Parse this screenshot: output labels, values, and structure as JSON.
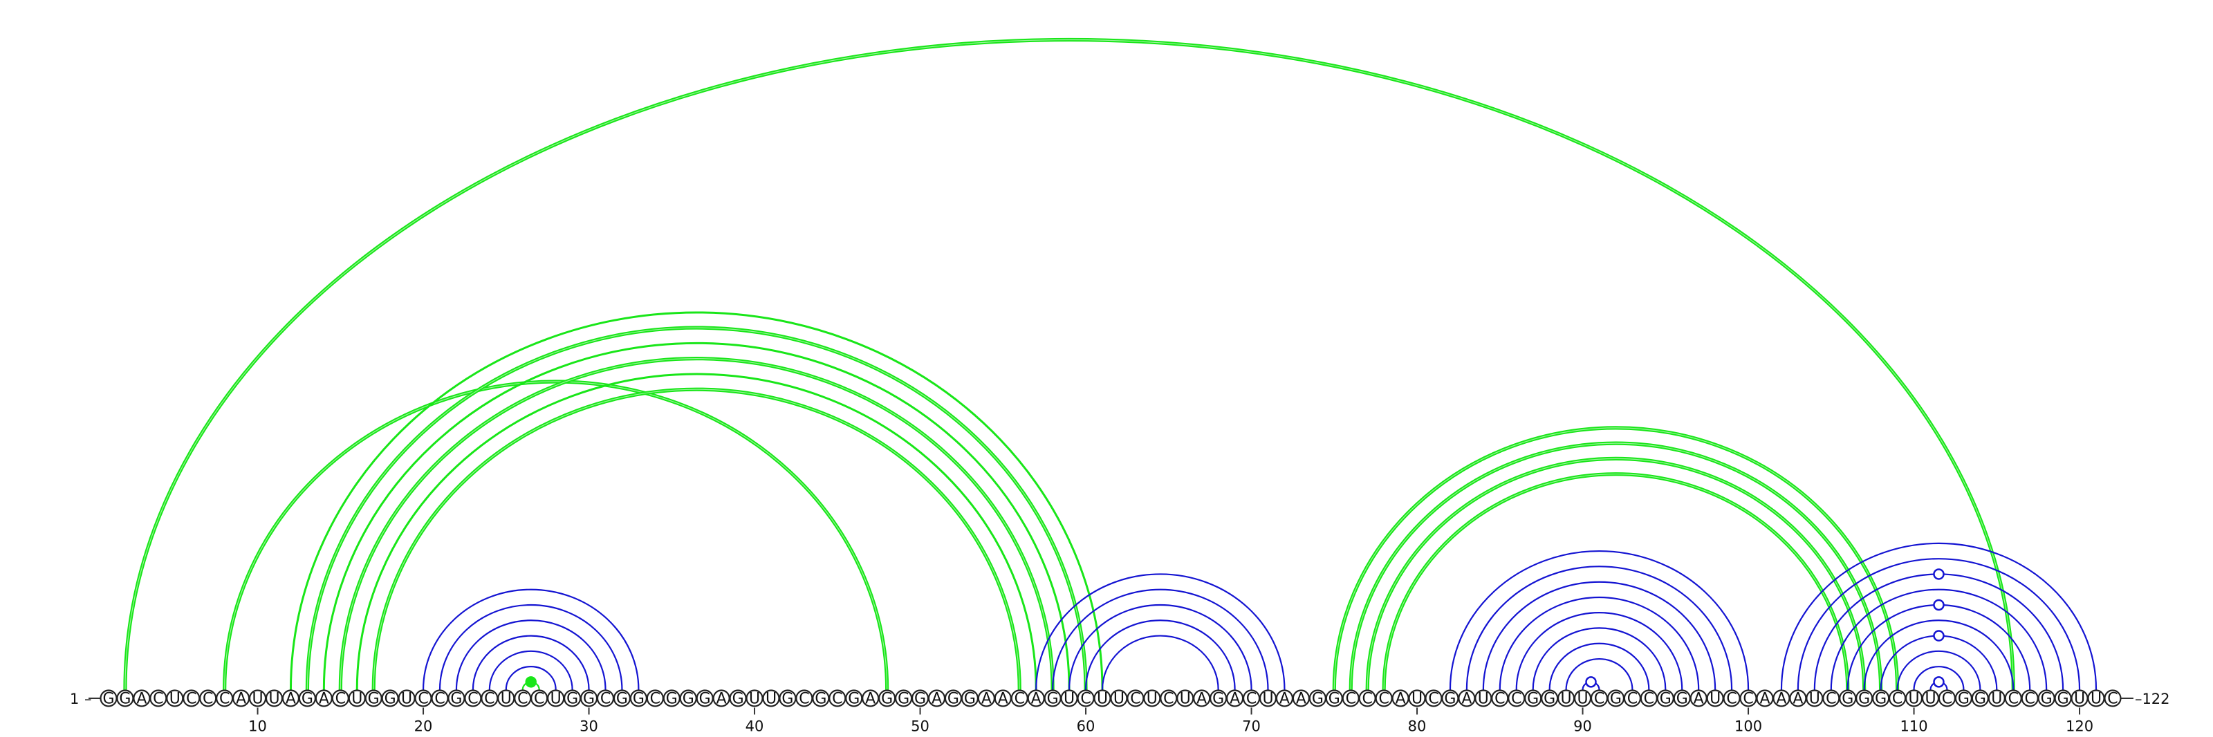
{
  "sequence": "GGACUCCCAUUAGACUGGUCCGCCUCCUGGCGGCGGGAGUUGCGCGAGGGAGGAACAGUCUUCUCUAGACUAAGGCCCAUCGAUCCGGUUCGCCGGAUCCAAAUCGGGCUUCGGUCCGGUUC",
  "start_label": "1",
  "end_label": "122",
  "ticks": [
    {
      "pos": 10,
      "label": "10"
    },
    {
      "pos": 20,
      "label": "20"
    },
    {
      "pos": 30,
      "label": "30"
    },
    {
      "pos": 40,
      "label": "40"
    },
    {
      "pos": 50,
      "label": "50"
    },
    {
      "pos": 60,
      "label": "60"
    },
    {
      "pos": 70,
      "label": "70"
    },
    {
      "pos": 80,
      "label": "80"
    },
    {
      "pos": 90,
      "label": "90"
    },
    {
      "pos": 100,
      "label": "100"
    },
    {
      "pos": 110,
      "label": "110"
    },
    {
      "pos": 120,
      "label": "120"
    }
  ],
  "colors": {
    "green": "#19e619",
    "blue": "#1414d2",
    "ink": "#222222"
  },
  "arc_groups": [
    {
      "color": "green",
      "pairs": [
        [
          2,
          116
        ]
      ],
      "thickness": "thick"
    },
    {
      "color": "green",
      "pairs": [
        [
          8,
          48
        ]
      ],
      "thickness": "thick"
    },
    {
      "color": "green",
      "pairs": [
        [
          12,
          61
        ],
        [
          13,
          60
        ],
        [
          14,
          59
        ],
        [
          15,
          58
        ],
        [
          16,
          57
        ],
        [
          17,
          56
        ]
      ],
      "thickness": "mixed"
    },
    {
      "color": "green",
      "pairs": [
        [
          26,
          27
        ]
      ],
      "thickness": "thin",
      "marker": "filled"
    },
    {
      "color": "blue",
      "pairs": [
        [
          20,
          33
        ],
        [
          21,
          32
        ],
        [
          22,
          31
        ],
        [
          23,
          30
        ],
        [
          24,
          29
        ],
        [
          25,
          28
        ]
      ],
      "thickness": "thin"
    },
    {
      "color": "blue",
      "pairs": [
        [
          57,
          72
        ],
        [
          58,
          71
        ],
        [
          59,
          70
        ],
        [
          60,
          69
        ],
        [
          61,
          68
        ]
      ],
      "thickness": "thin"
    },
    {
      "color": "green",
      "pairs": [
        [
          75,
          109
        ],
        [
          76,
          108
        ],
        [
          77,
          107
        ],
        [
          78,
          106
        ]
      ],
      "thickness": "thick"
    },
    {
      "color": "blue",
      "pairs": [
        [
          82,
          100
        ],
        [
          83,
          99
        ],
        [
          84,
          98
        ],
        [
          85,
          97
        ],
        [
          86,
          96
        ],
        [
          87,
          95
        ],
        [
          88,
          94
        ],
        [
          89,
          93
        ]
      ],
      "thickness": "thin"
    },
    {
      "color": "blue",
      "pairs": [
        [
          90,
          91
        ]
      ],
      "thickness": "thin",
      "marker": "open"
    },
    {
      "color": "blue",
      "pairs": [
        [
          102,
          121
        ],
        [
          103,
          120
        ],
        [
          104,
          119
        ],
        [
          105,
          118
        ],
        [
          106,
          117
        ],
        [
          107,
          116
        ],
        [
          108,
          115
        ],
        [
          109,
          114
        ],
        [
          110,
          113
        ]
      ],
      "thickness": "thin"
    },
    {
      "color": "blue",
      "pairs": [
        [
          111,
          112
        ]
      ],
      "thickness": "thin",
      "marker": "open"
    }
  ]
}
